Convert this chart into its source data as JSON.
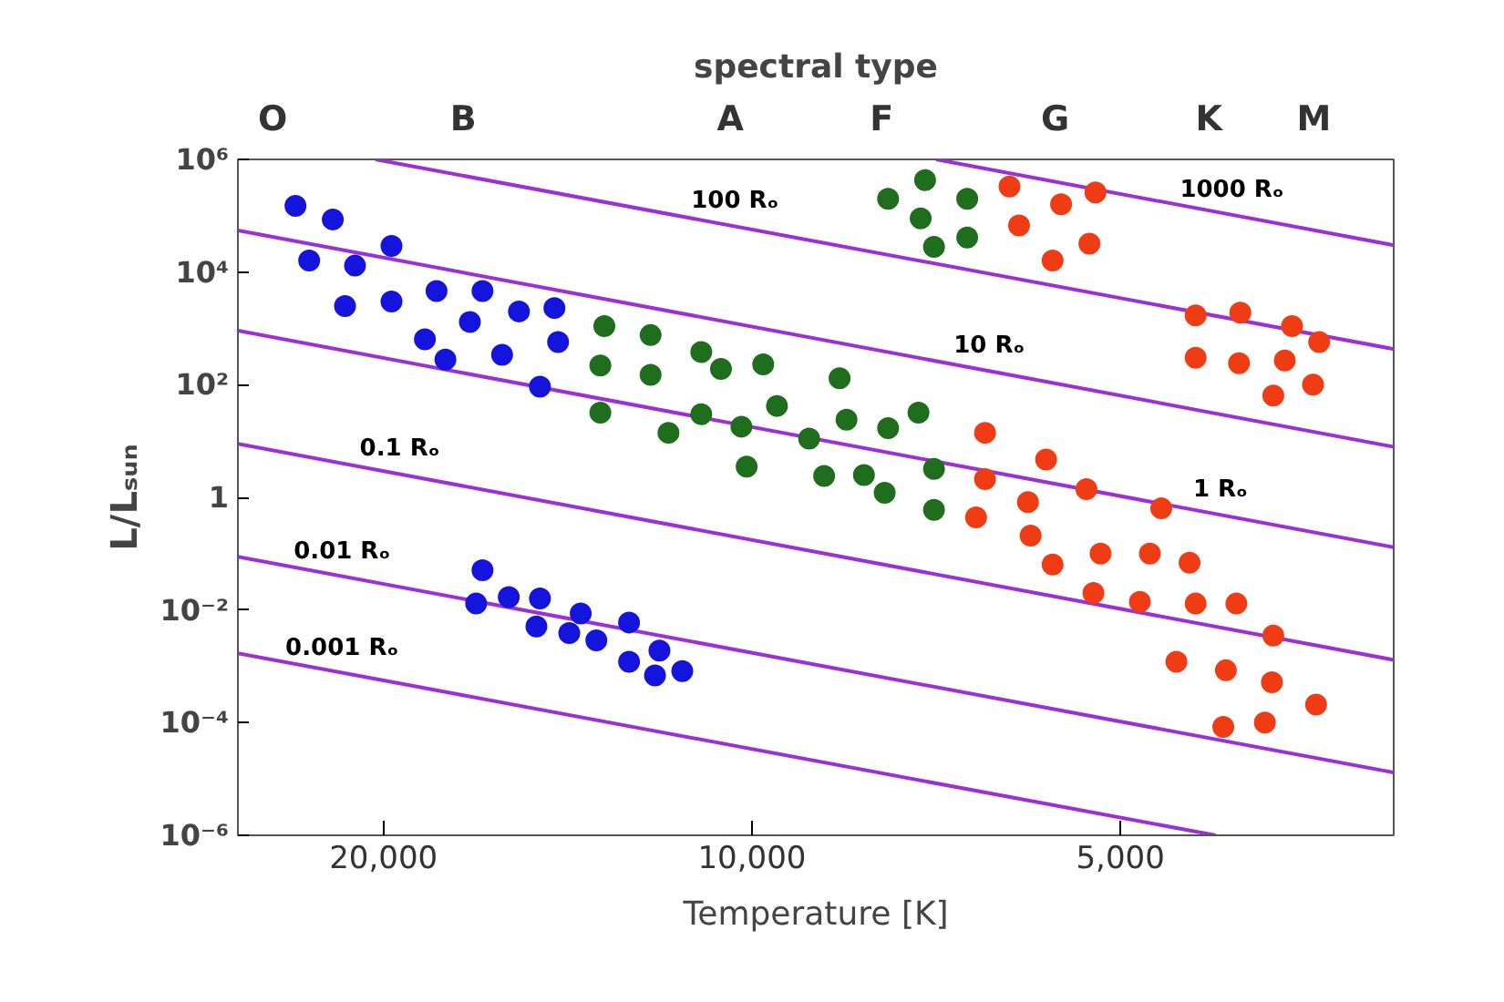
{
  "chart_data": {
    "type": "scatter",
    "x2label": "spectral type",
    "xlabel": "Temperature [K]",
    "ylabel": "L/Lₛᵤₙ",
    "log": "xy",
    "xlim": [
      26300,
      2990
    ],
    "ylim": [
      1e-06,
      1000000.0
    ],
    "xticks": [
      {
        "value": 20000,
        "label": "20,000"
      },
      {
        "value": 10000,
        "label": "10,000"
      },
      {
        "value": 5000,
        "label": "5,000"
      }
    ],
    "yticks": [
      {
        "value": 1e-06,
        "label": "10⁻⁶"
      },
      {
        "value": 0.0001,
        "label": "10⁻⁴"
      },
      {
        "value": 0.01,
        "label": "10⁻²"
      },
      {
        "value": 1,
        "label": "1"
      },
      {
        "value": 100,
        "label": "10²"
      },
      {
        "value": 10000.0,
        "label": "10⁴"
      },
      {
        "value": 1000000.0,
        "label": "10⁶"
      }
    ],
    "series": [
      {
        "type": "scatter",
        "marker": "circle",
        "color": "#1414dc",
        "x": [
          23600,
          22000,
          23000,
          21100,
          19700,
          21500,
          19700,
          18100,
          16600,
          17000,
          15500,
          14500,
          18500,
          17800,
          16000,
          14400,
          14900
        ],
        "values": [
          150000.0,
          86000.0,
          16000.0,
          13000.0,
          29000.0,
          2500.0,
          3000.0,
          4600.0,
          4600.0,
          1300.0,
          2000.0,
          2300.0,
          640,
          280,
          340,
          570,
          92
        ]
      },
      {
        "type": "scatter",
        "marker": "circle",
        "color": "#1414dc",
        "x": [
          16600,
          16800,
          15800,
          14900,
          15000,
          13800,
          14100,
          13400,
          12600,
          12600,
          11900,
          12000,
          11400
        ],
        "values": [
          0.051,
          0.013,
          0.017,
          0.016,
          0.0051,
          0.0087,
          0.0039,
          0.0029,
          0.006,
          0.0012,
          0.0019,
          0.00069,
          0.00082
        ]
      },
      {
        "type": "scatter",
        "marker": "circle",
        "color": "#1e6e1e",
        "x": [
          13200,
          12100,
          13300,
          12100,
          11000,
          10600,
          9790,
          13300,
          11700,
          11000,
          10200,
          9540,
          10100,
          8980,
          8480,
          8370,
          7740,
          7310,
          8730,
          8100,
          7790,
          7100,
          7100,
          7740,
          7220,
          6670,
          7280,
          7100,
          6670
        ],
        "values": [
          1100,
          760,
          220,
          150,
          380,
          190,
          230,
          32,
          14,
          30,
          18,
          42,
          3.5,
          11,
          130,
          24,
          17,
          32,
          2.4,
          2.5,
          1.2,
          3.2,
          0.6,
          200000.0,
          430000.0,
          200000.0,
          90000.0,
          28000.0,
          41000.0
        ]
      },
      {
        "type": "scatter",
        "marker": "circle",
        "color": "#f03c14",
        "x": [
          6160,
          5590,
          5240,
          6050,
          5300,
          5680,
          4340,
          3990,
          3620,
          3440,
          4340,
          4000,
          3670,
          3480,
          3750,
          6450,
          5750,
          6450,
          5330,
          5950,
          4630,
          6560,
          5920,
          5680,
          5190,
          4730,
          4390,
          5260,
          4820,
          4340,
          4020,
          3750,
          4500,
          4100,
          3760,
          3460,
          4120,
          3810
        ],
        "values": [
          330000.0,
          160000.0,
          260000.0,
          67000.0,
          32000.0,
          16000.0,
          1700,
          1900,
          1100,
          570,
          300,
          240,
          270,
          100,
          64,
          14,
          4.7,
          2.1,
          1.4,
          0.82,
          0.64,
          0.44,
          0.21,
          0.064,
          0.1,
          0.1,
          0.069,
          0.02,
          0.014,
          0.013,
          0.013,
          0.0035,
          0.0012,
          0.00085,
          0.00052,
          0.00021,
          8.4e-05,
          0.0001
        ]
      },
      {
        "type": "line",
        "name": "1000 Rₒ",
        "color": "#9b30d9",
        "x": [
          7070,
          2990
        ],
        "values": [
          1000000.0,
          30000.0
        ]
      },
      {
        "type": "line",
        "name": "100 Rₒ",
        "color": "#9b30d9",
        "x": [
          20300,
          2990
        ],
        "values": [
          1000000.0,
          430
        ]
      },
      {
        "type": "line",
        "name": "10 Rₒ",
        "color": "#9b30d9",
        "x": [
          26300,
          2990
        ],
        "values": [
          55000.0,
          7.9
        ]
      },
      {
        "type": "line",
        "name": "1 Rₒ",
        "color": "#9b30d9",
        "x": [
          26300,
          2990
        ],
        "values": [
          910,
          0.13
        ]
      },
      {
        "type": "line",
        "name": "0.1 Rₒ",
        "color": "#9b30d9",
        "x": [
          26300,
          2990
        ],
        "values": [
          8.9,
          0.0013
        ]
      },
      {
        "type": "line",
        "name": "0.01 Rₒ",
        "color": "#9b30d9",
        "x": [
          26300,
          2990
        ],
        "values": [
          0.088,
          1.3e-05
        ]
      },
      {
        "type": "line",
        "name": "0.001 Rₒ",
        "color": "#9b30d9",
        "x": [
          26300,
          4180
        ],
        "values": [
          0.0017,
          1e-06
        ]
      }
    ],
    "annotations": [
      "O",
      "B",
      "A",
      "F",
      "G",
      "K",
      "M"
    ]
  }
}
